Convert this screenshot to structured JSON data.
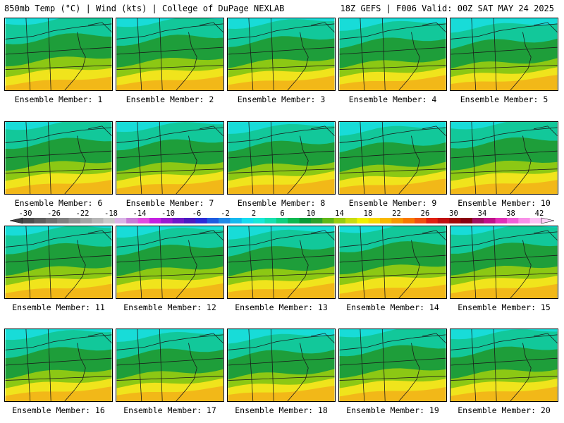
{
  "header": {
    "left": "850mb Temp (°C) | Wind (kts) | College of DuPage NEXLAB",
    "right": "18Z GEFS | F006 Valid: 00Z SAT MAY 24 2025"
  },
  "panels": [
    {
      "label": "Ensemble Member: 1"
    },
    {
      "label": "Ensemble Member: 2"
    },
    {
      "label": "Ensemble Member: 3"
    },
    {
      "label": "Ensemble Member: 4"
    },
    {
      "label": "Ensemble Member: 5"
    },
    {
      "label": "Ensemble Member: 6"
    },
    {
      "label": "Ensemble Member: 7"
    },
    {
      "label": "Ensemble Member: 8"
    },
    {
      "label": "Ensemble Member: 9"
    },
    {
      "label": "Ensemble Member: 10"
    },
    {
      "label": "Ensemble Member: 11"
    },
    {
      "label": "Ensemble Member: 12"
    },
    {
      "label": "Ensemble Member: 13"
    },
    {
      "label": "Ensemble Member: 14"
    },
    {
      "label": "Ensemble Member: 15"
    },
    {
      "label": "Ensemble Member: 16"
    },
    {
      "label": "Ensemble Member: 17"
    },
    {
      "label": "Ensemble Member: 18"
    },
    {
      "label": "Ensemble Member: 19"
    },
    {
      "label": "Ensemble Member: 20"
    }
  ],
  "colorbar": {
    "tick_labels": [
      "-30",
      "-26",
      "-22",
      "-18",
      "-14",
      "-10",
      "-6",
      "-2",
      "2",
      "6",
      "10",
      "14",
      "18",
      "22",
      "26",
      "30",
      "34",
      "38",
      "42"
    ],
    "colors": [
      "#4d4d4d",
      "#5e5e5e",
      "#6f6f6f",
      "#808080",
      "#929292",
      "#a4a4a4",
      "#b6b6b6",
      "#c9c9c9",
      "#d9b3e6",
      "#c77ad6",
      "#e14be0",
      "#c41fe0",
      "#9a1ad0",
      "#6f18c8",
      "#4a1ac0",
      "#2a2ad8",
      "#1e5ce0",
      "#1e8ae8",
      "#14b8ee",
      "#16dcf0",
      "#18e8d8",
      "#16e0b0",
      "#10d080",
      "#0cb850",
      "#0a9a38",
      "#2ca02c",
      "#60b818",
      "#98cc10",
      "#c8dc10",
      "#f0f000",
      "#f8d800",
      "#f8b800",
      "#f89800",
      "#f87800",
      "#f05010",
      "#e02010",
      "#c01010",
      "#a00808",
      "#880010",
      "#a01060",
      "#c0108a",
      "#e030b8",
      "#f060d8",
      "#f890e8",
      "#fcc0f4"
    ]
  },
  "colors": {
    "cold": "#18dcd8",
    "cool": "#12c89a",
    "green": "#1e9e3a",
    "lime": "#8cc814",
    "yellow": "#f0e41c",
    "orange": "#f2b818"
  }
}
